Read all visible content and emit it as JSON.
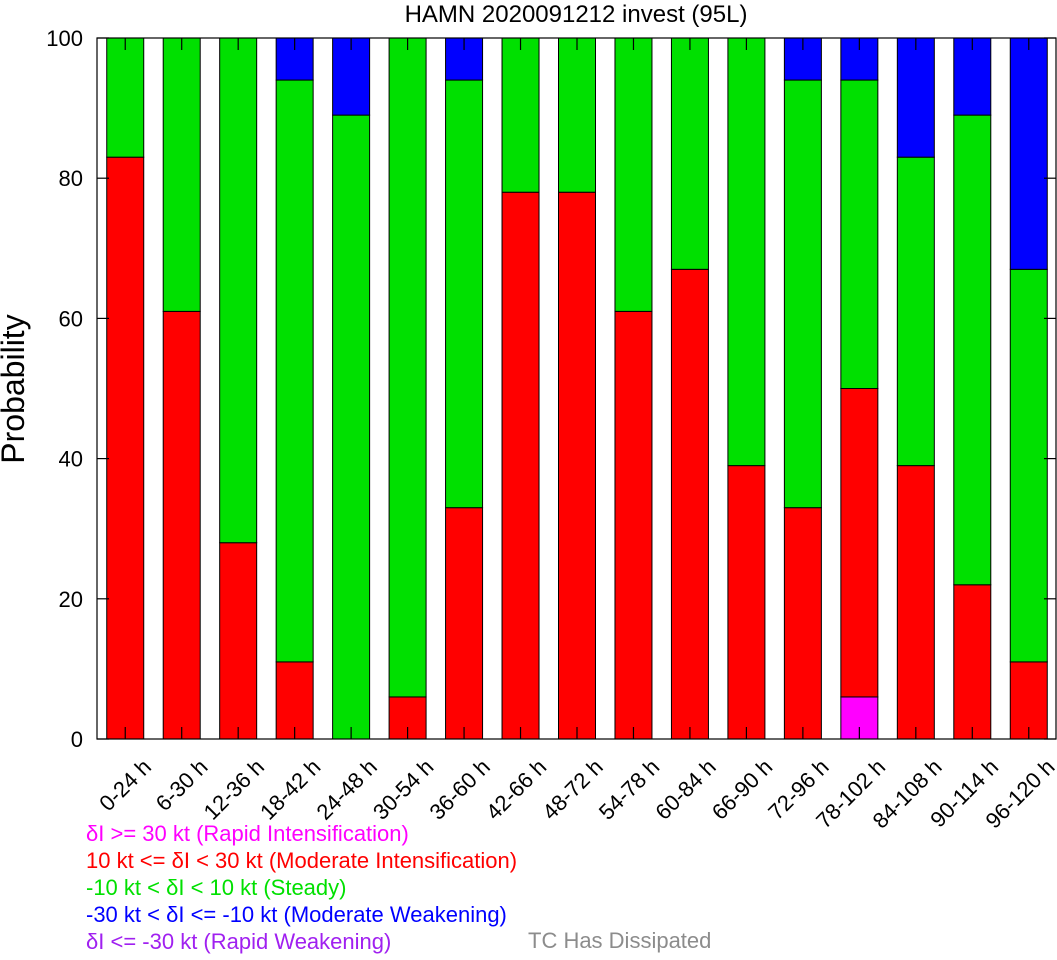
{
  "chart_data": {
    "type": "bar",
    "stacked": true,
    "title": "HAMN 2020091212 invest (95L)",
    "ylabel": "Probability",
    "xlabel": "",
    "ylim": [
      0,
      100
    ],
    "yticks": [
      0,
      20,
      40,
      60,
      80,
      100
    ],
    "grid": false,
    "categories": [
      "0-24 h",
      "6-30 h",
      "12-36 h",
      "18-42 h",
      "24-48 h",
      "30-54 h",
      "36-60 h",
      "42-66 h",
      "48-72 h",
      "54-78 h",
      "60-84 h",
      "66-90 h",
      "72-96 h",
      "78-102 h",
      "84-108 h",
      "90-114 h",
      "96-120 h"
    ],
    "series": [
      {
        "name": "δI >= 30 kt (Rapid Intensification)",
        "color": "#ff00ff",
        "values": [
          0,
          0,
          0,
          0,
          0,
          0,
          0,
          0,
          0,
          0,
          0,
          0,
          0,
          6,
          0,
          0,
          0
        ]
      },
      {
        "name": "10 kt <= δI < 30 kt (Moderate Intensification)",
        "color": "#ff0000",
        "values": [
          83,
          61,
          28,
          11,
          0,
          6,
          33,
          78,
          78,
          61,
          67,
          39,
          33,
          44,
          39,
          22,
          11
        ]
      },
      {
        "name": "-10 kt < δI < 10 kt (Steady)",
        "color": "#00e000",
        "values": [
          17,
          39,
          72,
          83,
          89,
          94,
          61,
          22,
          22,
          39,
          33,
          61,
          61,
          44,
          44,
          67,
          56
        ]
      },
      {
        "name": "-30 kt < δI <= -10 kt (Moderate Weakening)",
        "color": "#0000ff",
        "values": [
          0,
          0,
          0,
          6,
          11,
          0,
          6,
          0,
          0,
          0,
          0,
          0,
          6,
          6,
          17,
          11,
          33
        ]
      },
      {
        "name": "δI <= -30 kt (Rapid Weakening)",
        "color": "#a020f0",
        "values": [
          0,
          0,
          0,
          0,
          0,
          0,
          0,
          0,
          0,
          0,
          0,
          0,
          0,
          0,
          0,
          0,
          0
        ]
      }
    ],
    "extra_legend": {
      "label": "TC Has Dissipated",
      "color": "#8c8c8c"
    }
  }
}
